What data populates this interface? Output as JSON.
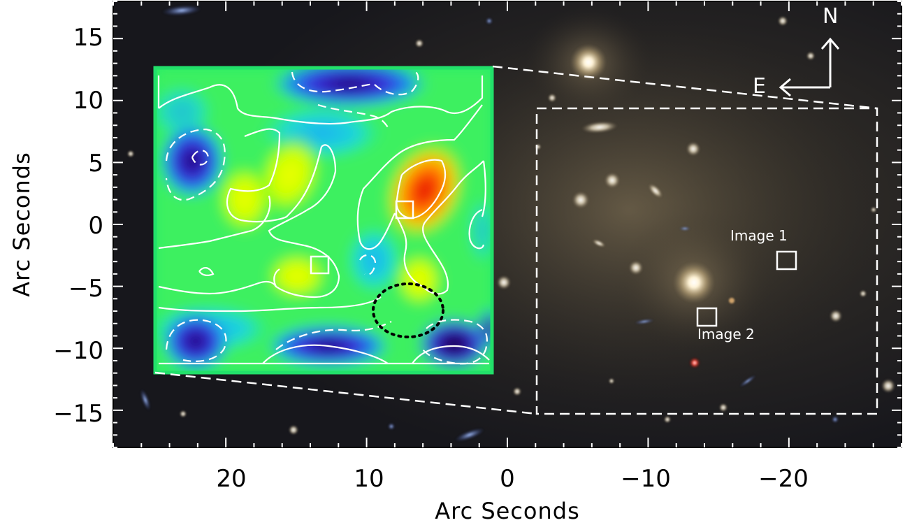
{
  "figure": {
    "xlabel": "Arc Seconds",
    "ylabel": "Arc Seconds",
    "x_ticks": [
      "20",
      "10",
      "0",
      "−10",
      "−20"
    ],
    "y_ticks": [
      "15",
      "10",
      "5",
      "0",
      "−5",
      "−10",
      "−15"
    ],
    "x_range": [
      28,
      -28
    ],
    "y_range": [
      -18,
      18
    ]
  },
  "annotations": {
    "image1_label": "Image 1",
    "image2_label": "Image 2",
    "compass_north": "N",
    "compass_east": "E"
  },
  "colors": {
    "sky_background": "#1a1a1f",
    "inset_border": "#22e06a",
    "contour": "#ffffff",
    "overlay_lines": "#ffffff",
    "ellipse": "#000000"
  }
}
